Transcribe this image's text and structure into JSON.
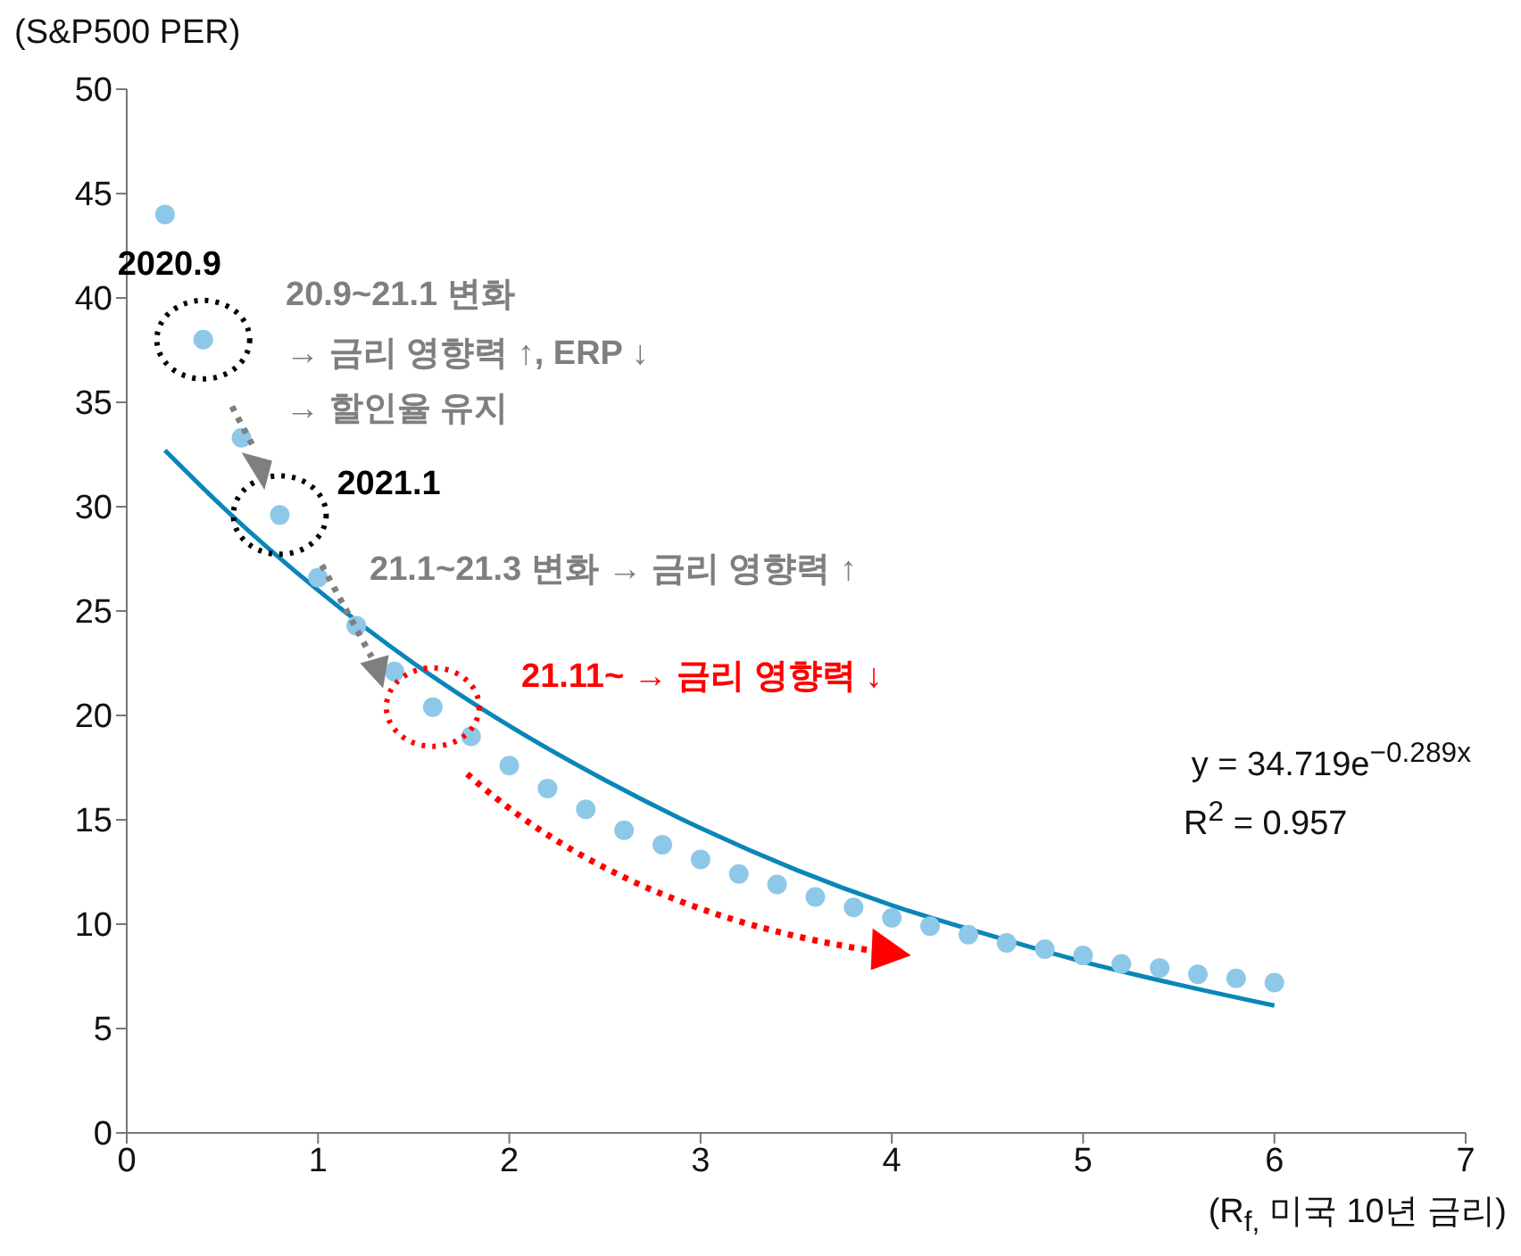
{
  "chart_data": {
    "type": "scatter",
    "ylabel": "(S&P500 PER)",
    "xlabel": "(R$_{f,}$ 미국 10년 금리)",
    "xlim": [
      0,
      7
    ],
    "xticks": [
      0,
      1,
      2,
      3,
      4,
      5,
      6,
      7
    ],
    "ylim": [
      0,
      50
    ],
    "yticks": [
      0,
      5,
      10,
      15,
      20,
      25,
      30,
      35,
      40,
      45,
      50
    ],
    "marker": "circle",
    "series": [
      {
        "color": "#8ec8e8",
        "x": [
          0.2,
          0.4,
          0.6,
          0.8,
          1.0,
          1.2,
          1.4,
          1.6,
          1.8,
          2.0,
          2.2,
          2.4,
          2.6,
          2.8,
          3.0,
          3.2,
          3.4,
          3.6,
          3.8,
          4.0,
          4.2,
          4.4,
          4.6,
          4.8,
          5.0,
          5.2,
          5.4,
          5.6,
          5.8,
          6.0
        ],
        "values": [
          44.0,
          38.0,
          33.3,
          29.6,
          26.6,
          24.3,
          22.1,
          20.4,
          19.0,
          17.6,
          16.5,
          15.5,
          14.5,
          13.8,
          13.1,
          12.4,
          11.9,
          11.3,
          10.8,
          10.3,
          9.9,
          9.5,
          9.1,
          8.8,
          8.5,
          8.1,
          7.9,
          7.6,
          7.4,
          7.2
        ]
      },
      {
        "type": "line",
        "color": "#0a86b8",
        "marker": "none",
        "line_style": "solid",
        "x": [
          0.2,
          0.5,
          1.0,
          1.5,
          2.0,
          2.5,
          3.0,
          3.5,
          4.0,
          4.5,
          5.0,
          5.5,
          6.0
        ],
        "values": [
          32.7,
          30.0,
          26.0,
          22.5,
          19.5,
          16.9,
          14.6,
          12.6,
          10.9,
          9.5,
          8.2,
          7.1,
          6.1
        ]
      }
    ],
    "annotations": [
      {
        "text": "2020.9",
        "x": 0.4,
        "y": 38.0
      },
      "20.9~21.1 변화",
      "→ 금리 영향력 ↑, ERP ↓",
      "→ 할인율 유지",
      {
        "text": "2021.1",
        "x": 0.8,
        "y": 29.6
      },
      "21.1~21.3 변화 → 금리 영향력 ↑",
      "21.11~ → 금리 영향력 ↓",
      "y = 34.719e$^{−0.289x}$",
      "R$^{2}$  = 0.957"
    ]
  }
}
